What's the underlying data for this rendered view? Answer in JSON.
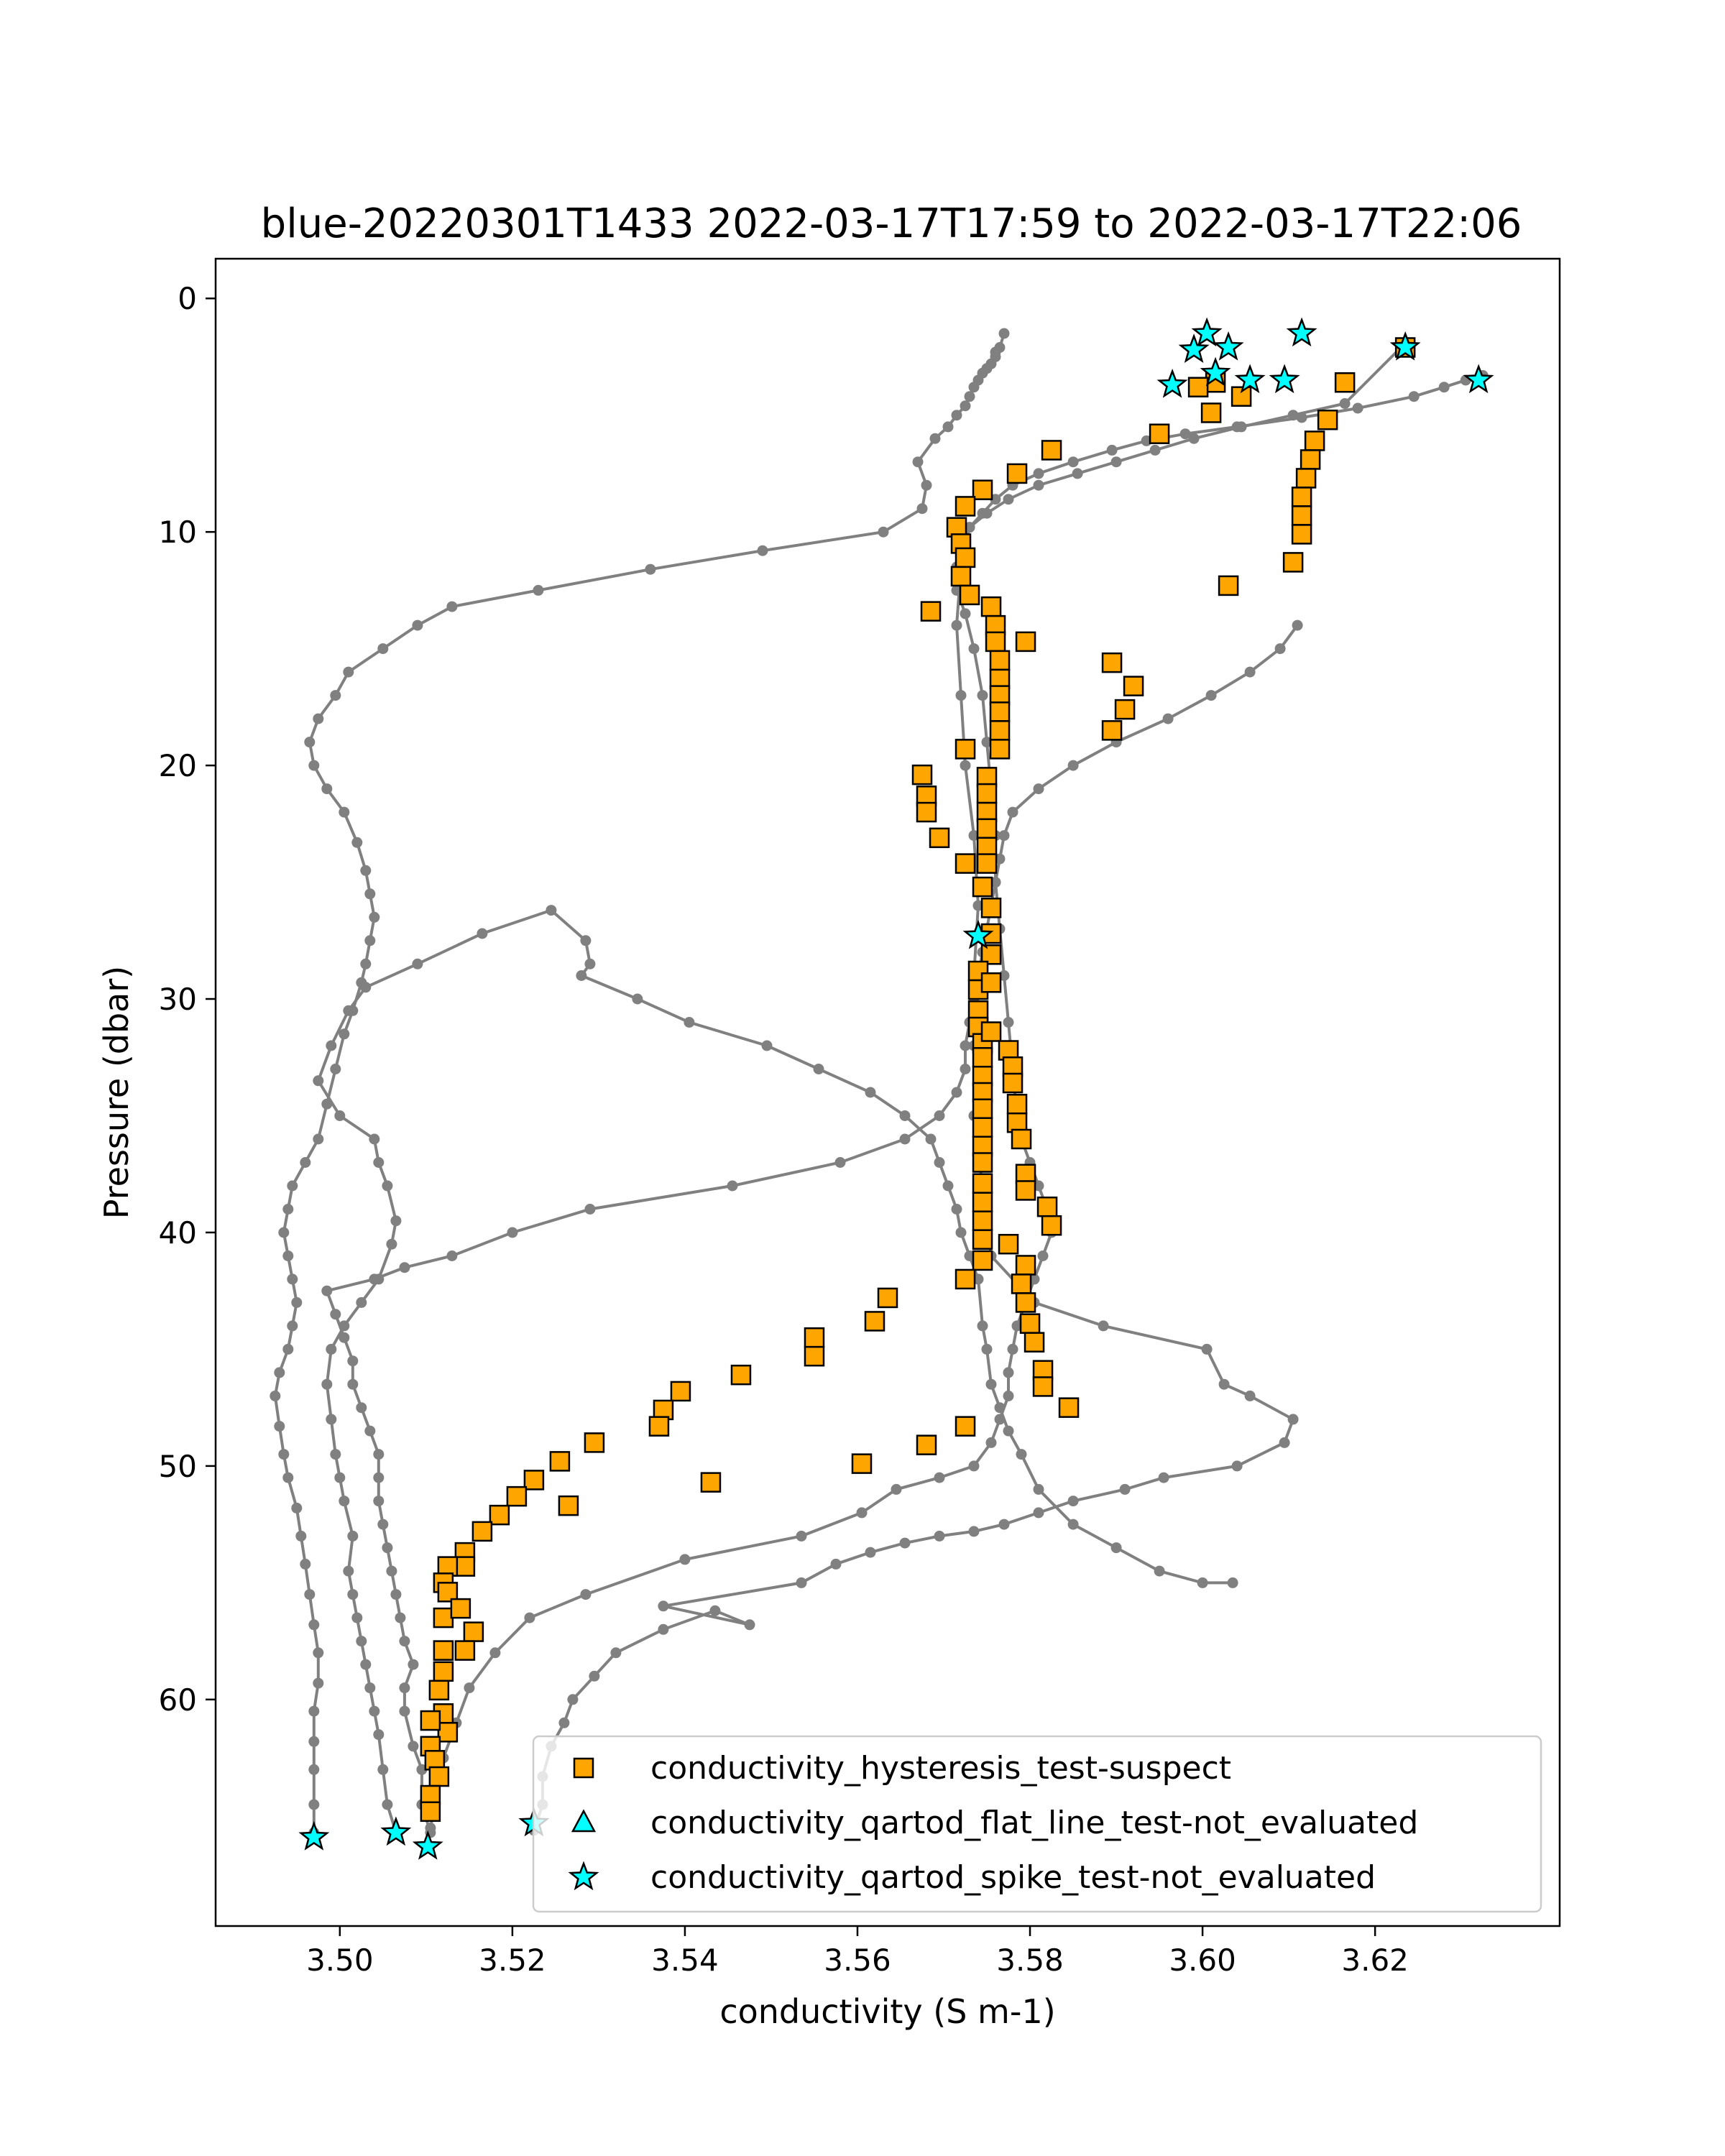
{
  "chart_data": {
    "type": "scatter",
    "title": "blue-20220301T1433 2022-03-17T17:59 to 2022-03-17T22:06",
    "xlabel": "conductivity (S m-1)",
    "ylabel": "Pressure (dbar)",
    "xlim": [
      3.4856,
      3.6414
    ],
    "ylim": [
      69.7,
      -1.7
    ],
    "y_inverted": true,
    "x_ticks": [
      3.5,
      3.52,
      3.54,
      3.56,
      3.58,
      3.6,
      3.62
    ],
    "x_tick_labels": [
      "3.50",
      "3.52",
      "3.54",
      "3.56",
      "3.58",
      "3.60",
      "3.62"
    ],
    "y_ticks": [
      0,
      10,
      20,
      30,
      40,
      50,
      60
    ],
    "y_tick_labels": [
      "0",
      "10",
      "20",
      "30",
      "40",
      "50",
      "60"
    ],
    "grid": false,
    "legend_position": "lower-right",
    "colors": {
      "profile": "#808080",
      "hysteresis": "#ffa500",
      "flat_line": "#00ffff",
      "spike": "#00ffff",
      "marker_edge": "#000000"
    },
    "profiles": [
      {
        "x": [
          3.497,
          3.497,
          3.497,
          3.497,
          3.497,
          3.4975,
          3.4975,
          3.497,
          3.4965,
          3.496,
          3.4955,
          3.495,
          3.494,
          3.4935,
          3.493,
          3.4925,
          3.493,
          3.494,
          3.4945,
          3.495,
          3.4945,
          3.494,
          3.4935,
          3.494,
          3.4945,
          3.496,
          3.4975,
          3.4985,
          3.4995,
          3.5005,
          3.5015,
          3.5025,
          3.503,
          3.5035,
          3.504,
          3.5035,
          3.503,
          3.502,
          3.5005,
          3.4985,
          3.497,
          3.4965,
          3.4975,
          3.4995,
          3.501,
          3.505,
          3.509,
          3.513,
          3.523,
          3.536,
          3.549,
          3.563,
          3.5675,
          3.568,
          3.567,
          3.569,
          3.5705,
          3.5715,
          3.5725,
          3.573,
          3.5735,
          3.574,
          3.5745,
          3.575,
          3.5755,
          3.576,
          3.576,
          3.5765,
          3.577
        ],
        "y": [
          65.7,
          64.5,
          63,
          61.8,
          60.5,
          59.3,
          58,
          56.8,
          55.5,
          54.2,
          53,
          51.8,
          50.5,
          49.5,
          48.3,
          47,
          46,
          45,
          44,
          43,
          42,
          41,
          40,
          39,
          38,
          37,
          36,
          34.5,
          33,
          31.5,
          30.5,
          29.3,
          28.5,
          27.5,
          26.5,
          25.5,
          24.5,
          23.3,
          22,
          21,
          20,
          19,
          18,
          17,
          16,
          15,
          14,
          13.2,
          12.5,
          11.6,
          10.8,
          10,
          9,
          8,
          7,
          6,
          5.5,
          5,
          4.6,
          4.2,
          3.8,
          3.5,
          3.2,
          3,
          2.8,
          2.5,
          2.3,
          2.1,
          1.5
        ]
      },
      {
        "x": [
          3.5065,
          3.5055,
          3.505,
          3.5045,
          3.504,
          3.5035,
          3.503,
          3.5025,
          3.502,
          3.5015,
          3.501,
          3.5015,
          3.5005,
          3.5,
          3.4995,
          3.499,
          3.4985,
          3.499,
          3.5005,
          3.5025,
          3.5045,
          3.506,
          3.5065,
          3.5055,
          3.5045,
          3.504,
          3.5,
          3.4975,
          3.499,
          3.501,
          3.503,
          3.509,
          3.5165,
          3.5245,
          3.5285,
          3.529,
          3.528,
          3.5345,
          3.5405,
          3.5495,
          3.5555,
          3.5615,
          3.5655,
          3.5685,
          3.5695,
          3.5705,
          3.5715,
          3.572,
          3.573,
          3.574,
          3.5745,
          3.575,
          3.5755,
          3.5765,
          3.5775,
          3.579,
          3.581,
          3.585,
          3.59,
          3.595,
          3.6,
          3.6035
        ],
        "y": [
          65.7,
          64.5,
          63,
          61.5,
          60.5,
          59.5,
          58.5,
          57.5,
          56.5,
          55.5,
          54.5,
          53,
          51.5,
          50.5,
          49.5,
          48,
          46.5,
          45,
          44,
          43,
          42,
          40.5,
          39.5,
          38,
          37,
          36,
          35,
          33.5,
          32,
          30.5,
          29.5,
          28.5,
          27.2,
          26.2,
          27.5,
          28.5,
          29,
          30,
          31,
          32,
          33,
          34,
          35,
          36,
          37,
          38,
          39,
          40,
          41,
          42,
          44,
          45,
          46.5,
          47.5,
          48.5,
          49.5,
          51,
          52.5,
          53.5,
          54.5,
          55,
          55
        ]
      },
      {
        "x": [
          3.5105,
          3.5095,
          3.5095,
          3.5085,
          3.5075,
          3.5075,
          3.5085,
          3.5075,
          3.507,
          3.5065,
          3.506,
          3.5055,
          3.505,
          3.5045,
          3.5045,
          3.5045,
          3.5035,
          3.5025,
          3.5015,
          3.5015,
          3.5005,
          3.4995,
          3.4985,
          3.504,
          3.5075,
          3.513,
          3.52,
          3.529,
          3.5455,
          3.558,
          3.5655,
          3.5695,
          3.5715,
          3.5725,
          3.5725,
          3.573,
          3.5735,
          3.574,
          3.5745,
          3.575,
          3.5755,
          3.576,
          3.5765,
          3.577,
          3.578,
          3.581,
          3.585,
          3.59,
          3.596,
          3.601,
          3.6055,
          3.609,
          3.611
        ],
        "y": [
          65.7,
          64.5,
          63,
          62,
          60.5,
          59.5,
          58.5,
          57.5,
          56.5,
          55.5,
          54.5,
          53.5,
          52.5,
          51.5,
          50.5,
          49.5,
          48.5,
          47.5,
          46.5,
          45.5,
          44.5,
          43.5,
          42.5,
          42,
          41.5,
          41,
          40,
          39,
          38,
          37,
          36,
          35,
          34,
          33,
          32,
          31,
          30,
          29,
          28,
          27,
          26,
          25,
          24,
          23,
          22,
          21,
          20,
          19,
          18,
          17,
          16,
          15,
          14
        ]
      },
      {
        "x": [
          3.5225,
          3.5235,
          3.5235,
          3.5245,
          3.526,
          3.527,
          3.5295,
          3.532,
          3.5375,
          3.5435,
          3.5475,
          3.5375,
          3.5535,
          3.5575,
          3.5615,
          3.5655,
          3.5695,
          3.5735,
          3.577,
          3.581,
          3.585,
          3.591,
          3.5955,
          3.604,
          3.6095,
          3.6105,
          3.6055,
          3.6025,
          3.6005,
          3.5885,
          3.5805,
          3.5755,
          3.5745,
          3.5735,
          3.5735,
          3.5735,
          3.574,
          3.5735,
          3.5725,
          3.572,
          3.5715,
          3.572,
          3.5725,
          3.573,
          3.5745,
          3.576,
          3.578,
          3.581,
          3.585,
          3.5895,
          3.5935,
          3.598,
          3.604,
          3.6115,
          3.618,
          3.6245,
          3.628,
          3.6305,
          3.6325
        ],
        "y": [
          65.6,
          64.5,
          63.3,
          62,
          61,
          60,
          59,
          58,
          57,
          56.2,
          56.8,
          56,
          55,
          54.2,
          53.7,
          53.3,
          53,
          52.8,
          52.5,
          52,
          51.5,
          51,
          50.5,
          50,
          49,
          48,
          47,
          46.5,
          45,
          44,
          43,
          41,
          38,
          35,
          32,
          29,
          26,
          23,
          20,
          17,
          14,
          11.5,
          10.5,
          9.8,
          9.2,
          8.6,
          8,
          7.5,
          7,
          6.5,
          6.1,
          5.8,
          5.5,
          5.1,
          4.7,
          4.2,
          3.8,
          3.5,
          3.3
        ]
      },
      {
        "x": [
          3.51,
          3.5105,
          3.511,
          3.5115,
          3.512,
          3.5135,
          3.515,
          3.518,
          3.522,
          3.5285,
          3.54,
          3.5535,
          3.5605,
          3.5645,
          3.5695,
          3.5735,
          3.5755,
          3.5765,
          3.5775,
          3.5775,
          3.578,
          3.5785,
          3.5795,
          3.5805,
          3.5815,
          3.5825,
          3.582,
          3.581,
          3.58,
          3.579,
          3.5785,
          3.578,
          3.5775,
          3.577,
          3.5765,
          3.576,
          3.576,
          3.5755,
          3.575,
          3.5745,
          3.5735,
          3.5725,
          3.5715,
          3.5715,
          3.5715,
          3.573,
          3.575,
          3.5775,
          3.581,
          3.5855,
          3.59,
          3.5945,
          3.599,
          3.6045,
          3.6105,
          3.6165,
          3.623
        ],
        "y": [
          66.3,
          65.5,
          64.5,
          63.5,
          62.5,
          61,
          59.5,
          58,
          56.5,
          55.5,
          54,
          53,
          52,
          51,
          50.5,
          50,
          49,
          48,
          47,
          46,
          45,
          44,
          43,
          42,
          41,
          40,
          39,
          38,
          37,
          36,
          35,
          33,
          31,
          29,
          27,
          25,
          23,
          21,
          19,
          17,
          15,
          13.5,
          12.5,
          11.5,
          10.5,
          9.8,
          9.2,
          8.6,
          8,
          7.5,
          7,
          6.5,
          6,
          5.5,
          5,
          4.5,
          2.1
        ]
      }
    ],
    "hysteresis_points": [
      {
        "x": 3.6015,
        "y": 3.6
      },
      {
        "x": 3.5995,
        "y": 3.8
      },
      {
        "x": 3.6045,
        "y": 4.2
      },
      {
        "x": 3.601,
        "y": 4.9
      },
      {
        "x": 3.595,
        "y": 5.8
      },
      {
        "x": 3.5825,
        "y": 6.5
      },
      {
        "x": 3.5785,
        "y": 7.5
      },
      {
        "x": 3.5745,
        "y": 8.2
      },
      {
        "x": 3.5725,
        "y": 8.9
      },
      {
        "x": 3.5715,
        "y": 9.8
      },
      {
        "x": 3.572,
        "y": 10.5
      },
      {
        "x": 3.5725,
        "y": 11.1
      },
      {
        "x": 3.572,
        "y": 11.9
      },
      {
        "x": 3.573,
        "y": 12.7
      },
      {
        "x": 3.5685,
        "y": 13.4
      },
      {
        "x": 3.5755,
        "y": 13.2
      },
      {
        "x": 3.576,
        "y": 14
      },
      {
        "x": 3.576,
        "y": 14.7
      },
      {
        "x": 3.5795,
        "y": 14.7
      },
      {
        "x": 3.5765,
        "y": 15.5
      },
      {
        "x": 3.5765,
        "y": 16.3
      },
      {
        "x": 3.5765,
        "y": 17
      },
      {
        "x": 3.5765,
        "y": 17.7
      },
      {
        "x": 3.5765,
        "y": 18.5
      },
      {
        "x": 3.5765,
        "y": 19.3
      },
      {
        "x": 3.5895,
        "y": 15.6
      },
      {
        "x": 3.592,
        "y": 16.6
      },
      {
        "x": 3.591,
        "y": 17.6
      },
      {
        "x": 3.5895,
        "y": 18.5
      },
      {
        "x": 3.5725,
        "y": 19.3
      },
      {
        "x": 3.5675,
        "y": 20.4
      },
      {
        "x": 3.568,
        "y": 21.3
      },
      {
        "x": 3.568,
        "y": 22
      },
      {
        "x": 3.5695,
        "y": 23.1
      },
      {
        "x": 3.5725,
        "y": 24.2
      },
      {
        "x": 3.575,
        "y": 20.5
      },
      {
        "x": 3.575,
        "y": 21.2
      },
      {
        "x": 3.575,
        "y": 22
      },
      {
        "x": 3.575,
        "y": 22.7
      },
      {
        "x": 3.575,
        "y": 23.5
      },
      {
        "x": 3.575,
        "y": 24.2
      },
      {
        "x": 3.5745,
        "y": 25.2
      },
      {
        "x": 3.5755,
        "y": 26.1
      },
      {
        "x": 3.5755,
        "y": 27.2
      },
      {
        "x": 3.5755,
        "y": 28.1
      },
      {
        "x": 3.574,
        "y": 28.8
      },
      {
        "x": 3.574,
        "y": 29.6
      },
      {
        "x": 3.5755,
        "y": 29.3
      },
      {
        "x": 3.574,
        "y": 30.5
      },
      {
        "x": 3.574,
        "y": 31.2
      },
      {
        "x": 3.5745,
        "y": 31.9
      },
      {
        "x": 3.5755,
        "y": 31.4
      },
      {
        "x": 3.5745,
        "y": 32.5
      },
      {
        "x": 3.5745,
        "y": 33.3
      },
      {
        "x": 3.5745,
        "y": 34
      },
      {
        "x": 3.5745,
        "y": 34.7
      },
      {
        "x": 3.5745,
        "y": 35.5
      },
      {
        "x": 3.5745,
        "y": 36.3
      },
      {
        "x": 3.5745,
        "y": 37
      },
      {
        "x": 3.5745,
        "y": 37.9
      },
      {
        "x": 3.5745,
        "y": 38.7
      },
      {
        "x": 3.5745,
        "y": 39.5
      },
      {
        "x": 3.5745,
        "y": 40.3
      },
      {
        "x": 3.5745,
        "y": 41.2
      },
      {
        "x": 3.5775,
        "y": 32.2
      },
      {
        "x": 3.578,
        "y": 32.9
      },
      {
        "x": 3.578,
        "y": 33.6
      },
      {
        "x": 3.5785,
        "y": 34.5
      },
      {
        "x": 3.5785,
        "y": 35.3
      },
      {
        "x": 3.579,
        "y": 36
      },
      {
        "x": 3.5795,
        "y": 37.5
      },
      {
        "x": 3.5795,
        "y": 38.2
      },
      {
        "x": 3.582,
        "y": 38.9
      },
      {
        "x": 3.5825,
        "y": 39.7
      },
      {
        "x": 3.5775,
        "y": 40.5
      },
      {
        "x": 3.5795,
        "y": 41.4
      },
      {
        "x": 3.579,
        "y": 42.2
      },
      {
        "x": 3.5795,
        "y": 43
      },
      {
        "x": 3.58,
        "y": 43.9
      },
      {
        "x": 3.5805,
        "y": 44.7
      },
      {
        "x": 3.5815,
        "y": 45.9
      },
      {
        "x": 3.5815,
        "y": 46.6
      },
      {
        "x": 3.5845,
        "y": 47.5
      },
      {
        "x": 3.5725,
        "y": 42
      },
      {
        "x": 3.5635,
        "y": 42.8
      },
      {
        "x": 3.562,
        "y": 43.8
      },
      {
        "x": 3.555,
        "y": 44.5
      },
      {
        "x": 3.555,
        "y": 45.3
      },
      {
        "x": 3.5465,
        "y": 46.1
      },
      {
        "x": 3.5395,
        "y": 46.8
      },
      {
        "x": 3.5375,
        "y": 47.6
      },
      {
        "x": 3.537,
        "y": 48.3
      },
      {
        "x": 3.5295,
        "y": 49
      },
      {
        "x": 3.5255,
        "y": 49.8
      },
      {
        "x": 3.5225,
        "y": 50.6
      },
      {
        "x": 3.5205,
        "y": 51.3
      },
      {
        "x": 3.5185,
        "y": 52.1
      },
      {
        "x": 3.5165,
        "y": 52.8
      },
      {
        "x": 3.5145,
        "y": 53.7
      },
      {
        "x": 3.5145,
        "y": 54.3
      },
      {
        "x": 3.5125,
        "y": 54.3
      },
      {
        "x": 3.512,
        "y": 55
      },
      {
        "x": 3.5125,
        "y": 55.4
      },
      {
        "x": 3.512,
        "y": 56.5
      },
      {
        "x": 3.514,
        "y": 56.1
      },
      {
        "x": 3.5155,
        "y": 57.1
      },
      {
        "x": 3.5145,
        "y": 57.9
      },
      {
        "x": 3.512,
        "y": 57.9
      },
      {
        "x": 3.512,
        "y": 58.8
      },
      {
        "x": 3.5115,
        "y": 59.6
      },
      {
        "x": 3.512,
        "y": 60.6
      },
      {
        "x": 3.5125,
        "y": 61.4
      },
      {
        "x": 3.5105,
        "y": 60.9
      },
      {
        "x": 3.5105,
        "y": 62
      },
      {
        "x": 3.511,
        "y": 62.6
      },
      {
        "x": 3.5115,
        "y": 63.3
      },
      {
        "x": 3.5105,
        "y": 64.1
      },
      {
        "x": 3.5105,
        "y": 64.8
      },
      {
        "x": 3.5725,
        "y": 48.3
      },
      {
        "x": 3.568,
        "y": 49.1
      },
      {
        "x": 3.5605,
        "y": 49.9
      },
      {
        "x": 3.543,
        "y": 50.7
      },
      {
        "x": 3.5265,
        "y": 51.7
      },
      {
        "x": 3.6165,
        "y": 3.6
      },
      {
        "x": 3.6145,
        "y": 5.2
      },
      {
        "x": 3.613,
        "y": 6.1
      },
      {
        "x": 3.6125,
        "y": 6.9
      },
      {
        "x": 3.612,
        "y": 7.7
      },
      {
        "x": 3.6115,
        "y": 8.5
      },
      {
        "x": 3.6115,
        "y": 9.3
      },
      {
        "x": 3.6115,
        "y": 10.1
      },
      {
        "x": 3.6105,
        "y": 11.3
      },
      {
        "x": 3.603,
        "y": 12.3
      },
      {
        "x": 3.6235,
        "y": 2.1
      }
    ],
    "spike_points": [
      {
        "x": 3.6005,
        "y": 1.5
      },
      {
        "x": 3.599,
        "y": 2.2
      },
      {
        "x": 3.603,
        "y": 2.1
      },
      {
        "x": 3.6015,
        "y": 3.2
      },
      {
        "x": 3.6055,
        "y": 3.5
      },
      {
        "x": 3.5965,
        "y": 3.7
      },
      {
        "x": 3.6095,
        "y": 3.5
      },
      {
        "x": 3.6115,
        "y": 1.5
      },
      {
        "x": 3.6235,
        "y": 2.1
      },
      {
        "x": 3.632,
        "y": 3.5
      },
      {
        "x": 3.574,
        "y": 27.3
      },
      {
        "x": 3.497,
        "y": 65.9
      },
      {
        "x": 3.5065,
        "y": 65.7
      },
      {
        "x": 3.5102,
        "y": 66.3
      },
      {
        "x": 3.5225,
        "y": 65.3
      }
    ],
    "flat_line_points": [],
    "legend": [
      {
        "label": "conductivity_hysteresis_test-suspect",
        "marker": "square",
        "color": "#ffa500"
      },
      {
        "label": "conductivity_qartod_flat_line_test-not_evaluated",
        "marker": "triangle",
        "color": "#00ffff"
      },
      {
        "label": "conductivity_qartod_spike_test-not_evaluated",
        "marker": "star",
        "color": "#00ffff"
      }
    ]
  }
}
